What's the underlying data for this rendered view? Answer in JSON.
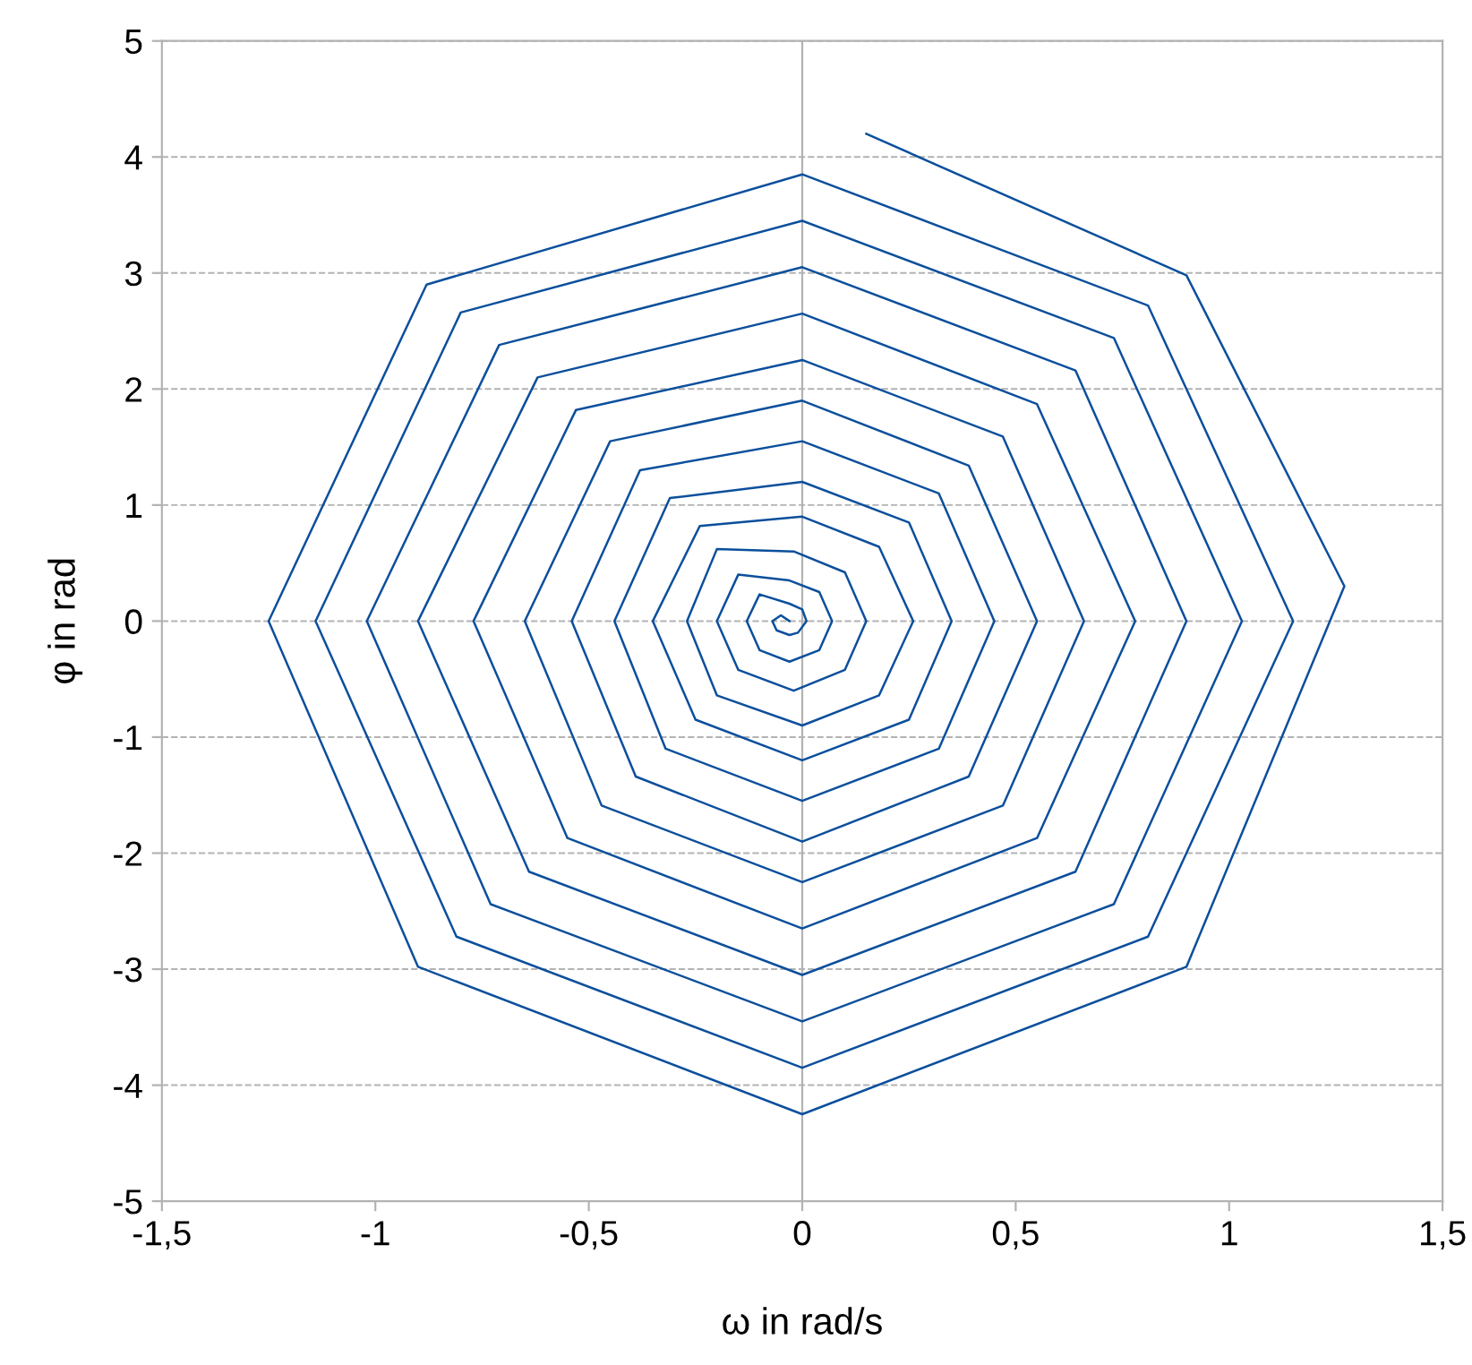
{
  "chart_data": {
    "type": "line",
    "xlabel": "ω in rad/s",
    "ylabel": "φ in rad",
    "xlim": [
      -1.5,
      1.5
    ],
    "ylim": [
      -5,
      5
    ],
    "xticks": [
      {
        "value": -1.5,
        "label": "-1,5"
      },
      -1,
      {
        "value": -0.5,
        "label": "-0,5"
      },
      0,
      {
        "value": 0.5,
        "label": "0,5"
      },
      1,
      {
        "value": 1.5,
        "label": "1,5"
      }
    ],
    "yticks": [
      -5,
      -4,
      -3,
      -2,
      -1,
      0,
      1,
      2,
      3,
      4,
      5
    ],
    "grid": "y",
    "line_style": "solid",
    "marker": "none",
    "legend": false,
    "ref_lines": [
      {
        "axis": "x",
        "value": 0,
        "color": "#b3b3b3"
      }
    ],
    "series": [
      {
        "color": "#0b4f9c",
        "x": [
          0.15,
          0.9,
          1.27,
          0.9,
          0,
          -0.9,
          -1.25,
          -0.88,
          0,
          0.81,
          1.15,
          0.81,
          0,
          -0.81,
          -1.14,
          -0.8,
          0,
          0.73,
          1.03,
          0.73,
          0,
          -0.73,
          -1.02,
          -0.71,
          0,
          0.64,
          0.9,
          0.64,
          0,
          -0.64,
          -0.9,
          -0.62,
          0,
          0.55,
          0.78,
          0.55,
          0,
          -0.55,
          -0.77,
          -0.53,
          0,
          0.47,
          0.66,
          0.47,
          0,
          -0.47,
          -0.65,
          -0.45,
          0,
          0.39,
          0.55,
          0.39,
          0,
          -0.39,
          -0.54,
          -0.38,
          0,
          0.32,
          0.45,
          0.32,
          0,
          -0.32,
          -0.44,
          -0.31,
          0,
          0.25,
          0.35,
          0.25,
          0,
          -0.25,
          -0.35,
          -0.24,
          0,
          0.18,
          0.26,
          0.18,
          0,
          -0.2,
          -0.27,
          -0.2,
          -0.02,
          0.1,
          0.15,
          0.1,
          -0.02,
          -0.15,
          -0.2,
          -0.15,
          -0.03,
          0.04,
          0.07,
          0.04,
          -0.03,
          -0.1,
          -0.13,
          -0.1,
          -0.03,
          0,
          0.01,
          -0.01,
          -0.03,
          -0.06,
          -0.07,
          -0.05,
          -0.03
        ],
        "values": [
          4.2,
          2.98,
          0.3,
          -2.98,
          -4.25,
          -2.98,
          0,
          2.9,
          3.85,
          2.72,
          0,
          -2.72,
          -3.85,
          -2.72,
          0,
          2.66,
          3.45,
          2.44,
          0,
          -2.44,
          -3.45,
          -2.44,
          0,
          2.38,
          3.05,
          2.16,
          0,
          -2.16,
          -3.05,
          -2.16,
          0,
          2.1,
          2.65,
          1.87,
          0,
          -1.87,
          -2.65,
          -1.87,
          0,
          1.82,
          2.25,
          1.59,
          0,
          -1.59,
          -2.25,
          -1.59,
          0,
          1.55,
          1.9,
          1.34,
          0,
          -1.34,
          -1.9,
          -1.34,
          0,
          1.3,
          1.55,
          1.1,
          0,
          -1.1,
          -1.55,
          -1.1,
          0,
          1.06,
          1.2,
          0.85,
          0,
          -0.85,
          -1.2,
          -0.85,
          0,
          0.82,
          0.9,
          0.64,
          0,
          -0.64,
          -0.9,
          -0.64,
          0,
          0.62,
          0.6,
          0.42,
          0,
          -0.42,
          -0.6,
          -0.42,
          0,
          0.4,
          0.35,
          0.25,
          0,
          -0.25,
          -0.35,
          -0.25,
          0,
          0.23,
          0.15,
          0.1,
          0,
          -0.1,
          -0.12,
          -0.08,
          0,
          0.05,
          0
        ]
      }
    ]
  }
}
